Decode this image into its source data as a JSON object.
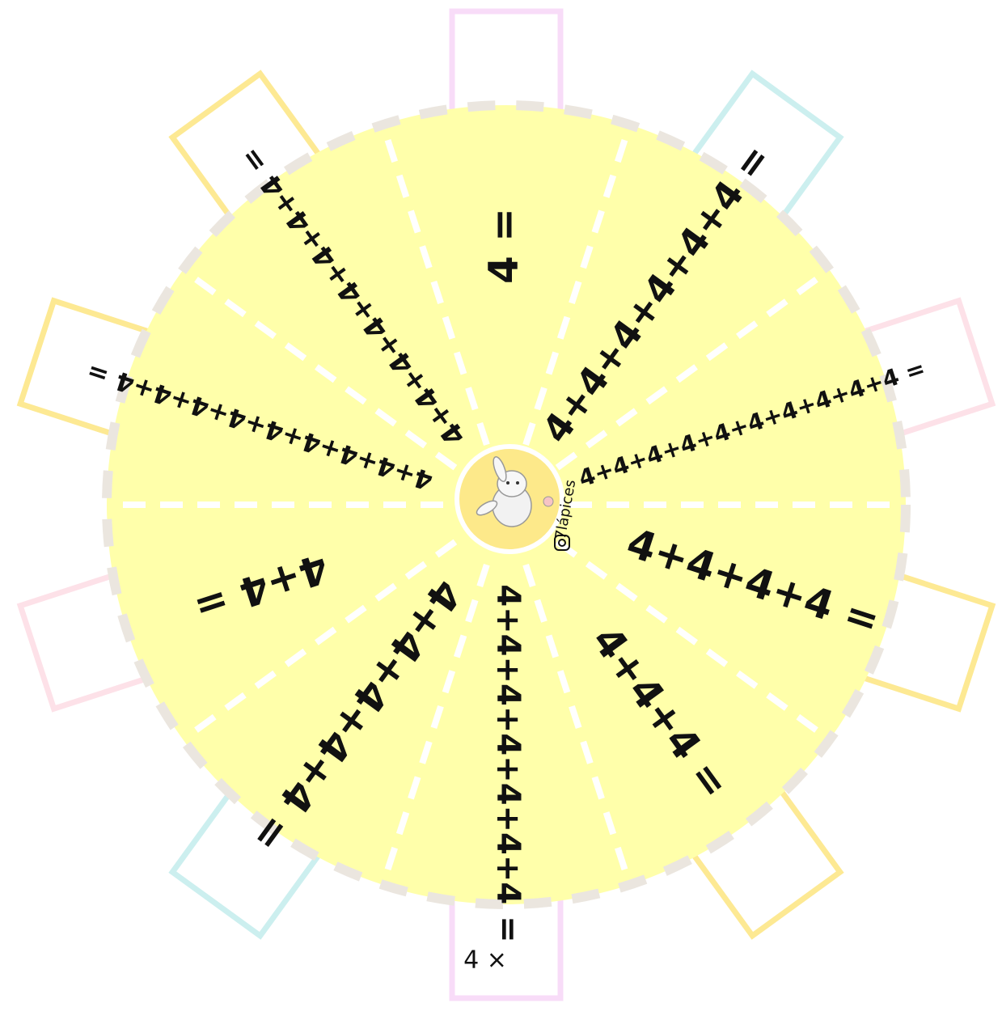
{
  "sectors": [
    {
      "label": "4 ="
    },
    {
      "label": "4+4+4+4+4+4 ="
    },
    {
      "label": "4+4+4+4+4+4+4+4+4+4 ="
    },
    {
      "label": "4+4+4+4 ="
    },
    {
      "label": "4+4+4 ="
    },
    {
      "label": "4+4+4+4+4+4+4 ="
    },
    {
      "label": "4+4+4+4+4 ="
    },
    {
      "label": "4+4 ="
    },
    {
      "label": "4+4+4+4+4+4+4+4+4 ="
    },
    {
      "label": "4+4+4+4+4+4+4+4 ="
    }
  ],
  "tab_label": "4 ×",
  "brand": "7lápices"
}
